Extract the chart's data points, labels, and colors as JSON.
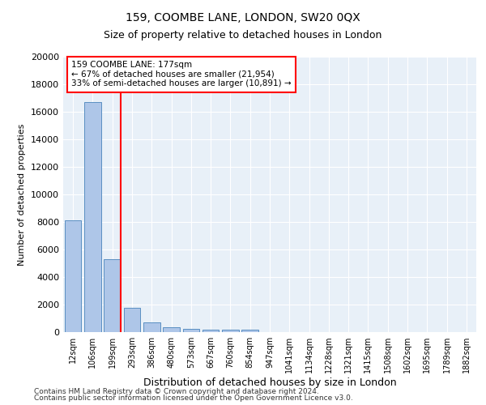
{
  "title_line1": "159, COOMBE LANE, LONDON, SW20 0QX",
  "title_line2": "Size of property relative to detached houses in London",
  "xlabel": "Distribution of detached houses by size in London",
  "ylabel": "Number of detached properties",
  "categories": [
    "12sqm",
    "106sqm",
    "199sqm",
    "293sqm",
    "386sqm",
    "480sqm",
    "573sqm",
    "667sqm",
    "760sqm",
    "854sqm",
    "947sqm",
    "1041sqm",
    "1134sqm",
    "1228sqm",
    "1321sqm",
    "1415sqm",
    "1508sqm",
    "1602sqm",
    "1695sqm",
    "1789sqm",
    "1882sqm"
  ],
  "values": [
    8100,
    16700,
    5300,
    1750,
    700,
    350,
    250,
    200,
    150,
    200,
    0,
    0,
    0,
    0,
    0,
    0,
    0,
    0,
    0,
    0,
    0
  ],
  "bar_color": "#aec6e8",
  "bar_edge_color": "#5a8fc2",
  "red_line_index": 2,
  "annotation_title": "159 COOMBE LANE: 177sqm",
  "annotation_line1": "← 67% of detached houses are smaller (21,954)",
  "annotation_line2": "33% of semi-detached houses are larger (10,891) →",
  "ylim": [
    0,
    20000
  ],
  "yticks": [
    0,
    2000,
    4000,
    6000,
    8000,
    10000,
    12000,
    14000,
    16000,
    18000,
    20000
  ],
  "bg_color": "#e8f0f8",
  "footer_line1": "Contains HM Land Registry data © Crown copyright and database right 2024.",
  "footer_line2": "Contains public sector information licensed under the Open Government Licence v3.0."
}
